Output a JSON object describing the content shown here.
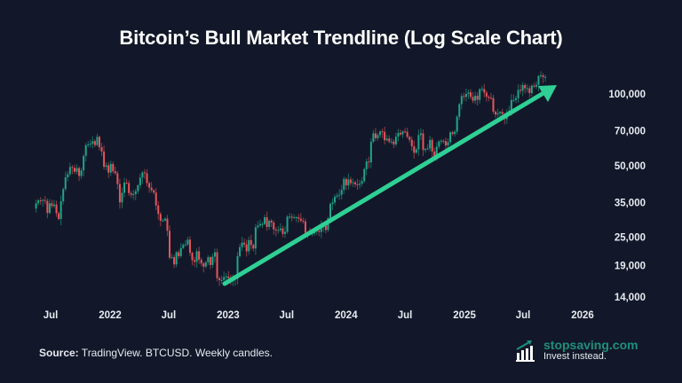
{
  "chart_data": {
    "type": "candlestick",
    "title": "Bitcoin’s Bull Market Trendline (Log Scale Chart)",
    "series_name": "BTCUSD",
    "interval": "weekly",
    "start_week": "2021-05-17",
    "y_scale": "log",
    "ylim": [
      13000,
      125000
    ],
    "y_ticks": [
      {
        "value": 100000,
        "label": "100,000"
      },
      {
        "value": 70000,
        "label": "70,000"
      },
      {
        "value": 50000,
        "label": "50,000"
      },
      {
        "value": 35000,
        "label": "35,000"
      },
      {
        "value": 25000,
        "label": "25,000"
      },
      {
        "value": 19000,
        "label": "19,000"
      },
      {
        "value": 14000,
        "label": "14,000"
      }
    ],
    "x_ticks": [
      {
        "date": "2021-07-01",
        "label": "Jul"
      },
      {
        "date": "2022-01-01",
        "label": "2022"
      },
      {
        "date": "2022-07-01",
        "label": "Jul"
      },
      {
        "date": "2023-01-01",
        "label": "2023"
      },
      {
        "date": "2023-07-01",
        "label": "Jul"
      },
      {
        "date": "2024-01-01",
        "label": "2024"
      },
      {
        "date": "2024-07-01",
        "label": "Jul"
      },
      {
        "date": "2025-01-01",
        "label": "2025"
      },
      {
        "date": "2025-07-01",
        "label": "Jul"
      },
      {
        "date": "2026-01-01",
        "label": "2026"
      }
    ],
    "weekly_closes": [
      34700,
      35700,
      35500,
      35800,
      35500,
      31600,
      34700,
      33800,
      34300,
      31500,
      29800,
      35400,
      39800,
      44600,
      46000,
      49300,
      48900,
      47100,
      48800,
      45200,
      47700,
      54900,
      60900,
      61300,
      61800,
      63300,
      61000,
      66000,
      59700,
      57300,
      49400,
      50100,
      46700,
      50800,
      47300,
      46400,
      41800,
      35000,
      38400,
      42400,
      42200,
      38300,
      37700,
      37900,
      39000,
      41300,
      44500,
      46800,
      46400,
      42200,
      40400,
      39400,
      38500,
      34000,
      31300,
      29300,
      29400,
      29900,
      26600,
      20500,
      20600,
      19200,
      21600,
      20800,
      22500,
      23200,
      23300,
      24400,
      21500,
      20000,
      19700,
      21800,
      20100,
      19400,
      18800,
      19600,
      20600,
      19100,
      20700,
      21600,
      16800,
      16500,
      16500,
      17000,
      17100,
      16800,
      16500,
      16600,
      16700,
      20800,
      22700,
      23700,
      23300,
      21800,
      24300,
      23200,
      22400,
      27500,
      28000,
      28400,
      28400,
      30300,
      27600,
      29300,
      28800,
      26900,
      26700,
      26800,
      27200,
      25800,
      26300,
      30500,
      30500,
      30200,
      30300,
      30300,
      29900,
      29300,
      29100,
      26100,
      26000,
      25800,
      25900,
      26500,
      26600,
      26300,
      27900,
      27900,
      26800,
      30000,
      34500,
      35000,
      37000,
      37400,
      37700,
      39500,
      43900,
      41300,
      43700,
      42200,
      42500,
      41700,
      41500,
      42000,
      43000,
      48300,
      52000,
      51600,
      63000,
      68300,
      65200,
      67200,
      69600,
      69300,
      63900,
      64900,
      63100,
      63100,
      61400,
      66200,
      68600,
      67600,
      69600,
      69300,
      66000,
      64200,
      60300,
      56600,
      58500,
      67200,
      68300,
      58100,
      58700,
      59000,
      64100,
      57300,
      54800,
      60000,
      63200,
      63600,
      63300,
      60800,
      62800,
      69000,
      67900,
      69400,
      80200,
      90600,
      98000,
      97200,
      100000,
      101500,
      97200,
      93700,
      98300,
      94500,
      104600,
      105000,
      101300,
      97400,
      96300,
      96100,
      84300,
      82000,
      83000,
      84000,
      82400,
      78400,
      83800,
      85100,
      94300,
      94300,
      96000,
      104000,
      103100,
      109000,
      105700,
      105700,
      100900,
      108300,
      107300,
      109200,
      119000,
      119800,
      117900,
      118000
    ],
    "annotation": "trendline arrow",
    "colors": {
      "background": "#121829",
      "up": "#1fa589",
      "down": "#e8545a",
      "trendline": "#2fcf95"
    }
  },
  "footer": {
    "source_label": "Source:",
    "source_text": " TradingView. BTCUSD. Weekly candles.",
    "brand": "stopsaving.com",
    "tagline": "Invest instead."
  }
}
